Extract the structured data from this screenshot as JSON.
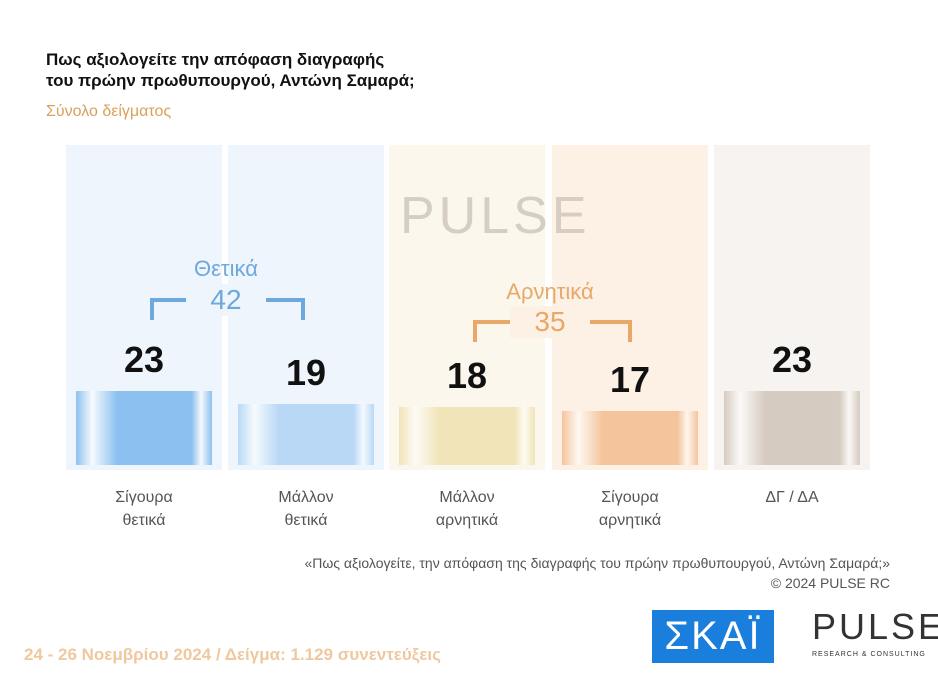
{
  "chart_data": {
    "type": "bar",
    "title": "Πως αξιολογείτε  την απόφαση διαγραφής του πρώην πρωθυπουργού, Αντώνη Σαμαρά;",
    "subtitle": "Σύνολο δείγματος",
    "categories": [
      [
        "Σίγουρα",
        "θετικά"
      ],
      [
        "Μάλλον",
        "θετικά"
      ],
      [
        "Μάλλον",
        "αρνητικά"
      ],
      [
        "Σίγουρα",
        "αρνητικά"
      ],
      [
        "ΔΓ / ΔΑ",
        ""
      ]
    ],
    "values": [
      23,
      19,
      18,
      17,
      23
    ],
    "colors": [
      "#8cc0f0",
      "#b8d8f6",
      "#f0e4b8",
      "#f4c49c",
      "#d6cbc0"
    ],
    "groups": [
      {
        "label": "Θετικά",
        "total": "42",
        "color": "#6fa8dc"
      },
      {
        "label": "Αρνητικά",
        "total": "35",
        "color": "#e8a868"
      }
    ]
  },
  "title_line1": "Πως αξιολογείτε  την απόφαση διαγραφής",
  "title_line2": "του πρώην πρωθυπουργού, Αντώνη Σαμαρά;",
  "watermark": "PULSE",
  "note": "«Πως αξιολογείτε, την απόφαση της διαγραφής του πρώην πρωθυπουργού, Αντώνη Σαμαρά;»",
  "copyright": "©  2024  PULSE RC",
  "footer": "24 - 26 Νοεμβρίου 2024  /  Δείγμα:  1.129 συνεντεύξεις",
  "logos": {
    "skai": "ΣΚΑΪ",
    "pulse": "PULSE",
    "pulse_sub": "RESEARCH & CONSULTING"
  }
}
